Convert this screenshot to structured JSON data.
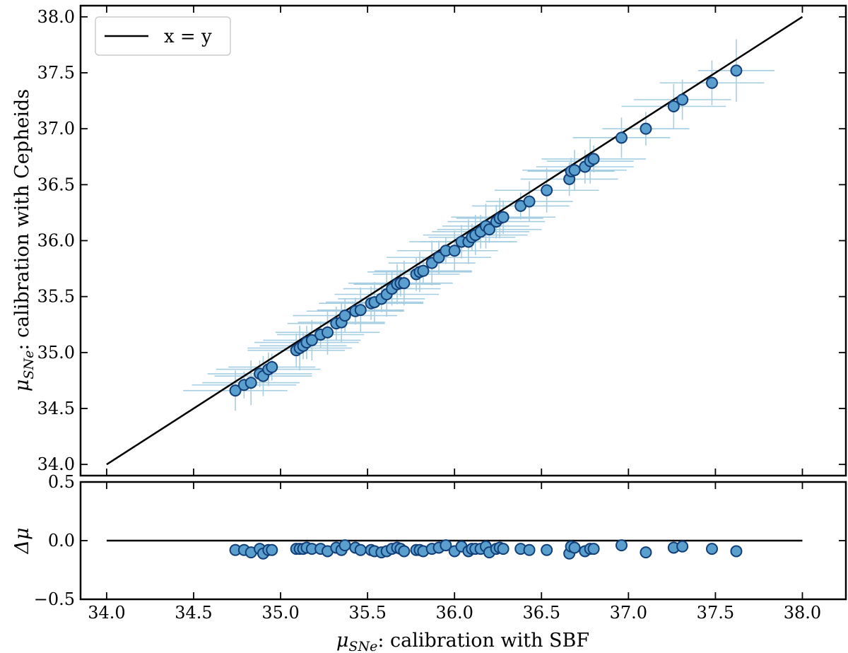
{
  "chart_data": {
    "type": "scatter",
    "top_panel": {
      "xlim": [
        33.85,
        38.25
      ],
      "ylim": [
        33.9,
        38.1
      ],
      "yticks": [
        34.0,
        34.5,
        35.0,
        35.5,
        36.0,
        36.5,
        37.0,
        37.5,
        38.0
      ],
      "ytick_labels": [
        "34.0",
        "34.5",
        "35.0",
        "35.5",
        "36.0",
        "36.5",
        "37.0",
        "37.5",
        "38.0"
      ],
      "ylabel_main": "μ",
      "ylabel_sub": "SNe",
      "ylabel_rest": ": calibration with Cepheids",
      "reference_line": {
        "label": "x = y",
        "from": [
          34.0,
          34.0
        ],
        "to": [
          38.0,
          38.0
        ]
      },
      "legend_position": "top-left",
      "series": [
        {
          "points": [
            [
              34.74,
              34.66,
              0.3,
              0.18
            ],
            [
              34.79,
              34.71,
              0.3,
              0.12
            ],
            [
              34.83,
              34.73,
              0.28,
              0.2
            ],
            [
              34.88,
              34.81,
              0.3,
              0.12
            ],
            [
              34.9,
              34.79,
              0.28,
              0.18
            ],
            [
              34.93,
              34.85,
              0.3,
              0.15
            ],
            [
              34.95,
              34.87,
              0.25,
              0.12
            ],
            [
              35.09,
              35.02,
              0.28,
              0.15
            ],
            [
              35.11,
              35.04,
              0.3,
              0.2
            ],
            [
              35.13,
              35.06,
              0.25,
              0.12
            ],
            [
              35.15,
              35.09,
              0.3,
              0.15
            ],
            [
              35.18,
              35.11,
              0.28,
              0.18
            ],
            [
              35.23,
              35.16,
              0.25,
              0.12
            ],
            [
              35.27,
              35.18,
              0.3,
              0.2
            ],
            [
              35.32,
              35.26,
              0.28,
              0.15
            ],
            [
              35.35,
              35.27,
              0.25,
              0.18
            ],
            [
              35.37,
              35.33,
              0.3,
              0.15
            ],
            [
              35.43,
              35.37,
              0.28,
              0.12
            ],
            [
              35.46,
              35.38,
              0.25,
              0.2
            ],
            [
              35.52,
              35.44,
              0.3,
              0.15
            ],
            [
              35.54,
              35.45,
              0.28,
              0.18
            ],
            [
              35.58,
              35.48,
              0.25,
              0.12
            ],
            [
              35.61,
              35.52,
              0.3,
              0.2
            ],
            [
              35.64,
              35.57,
              0.28,
              0.15
            ],
            [
              35.67,
              35.61,
              0.25,
              0.18
            ],
            [
              35.69,
              35.62,
              0.3,
              0.12
            ],
            [
              35.71,
              35.62,
              0.28,
              0.2
            ],
            [
              35.78,
              35.7,
              0.25,
              0.15
            ],
            [
              35.8,
              35.72,
              0.3,
              0.18
            ],
            [
              35.82,
              35.73,
              0.28,
              0.12
            ],
            [
              35.87,
              35.8,
              0.25,
              0.2
            ],
            [
              35.91,
              35.85,
              0.3,
              0.15
            ],
            [
              35.95,
              35.91,
              0.28,
              0.12
            ],
            [
              36.0,
              35.91,
              0.25,
              0.18
            ],
            [
              36.04,
              35.99,
              0.3,
              0.15
            ],
            [
              36.08,
              35.99,
              0.28,
              0.2
            ],
            [
              36.1,
              36.03,
              0.25,
              0.12
            ],
            [
              36.12,
              36.05,
              0.3,
              0.18
            ],
            [
              36.15,
              36.08,
              0.28,
              0.15
            ],
            [
              36.18,
              36.13,
              0.25,
              0.2
            ],
            [
              36.2,
              36.1,
              0.3,
              0.12
            ],
            [
              36.24,
              36.17,
              0.28,
              0.15
            ],
            [
              36.26,
              36.2,
              0.25,
              0.18
            ],
            [
              36.28,
              36.21,
              0.3,
              0.15
            ],
            [
              36.38,
              36.31,
              0.28,
              0.12
            ],
            [
              36.43,
              36.35,
              0.25,
              0.18
            ],
            [
              36.53,
              36.45,
              0.3,
              0.2
            ],
            [
              36.66,
              36.55,
              0.28,
              0.15
            ],
            [
              36.67,
              36.62,
              0.25,
              0.12
            ],
            [
              36.69,
              36.63,
              0.3,
              0.18
            ],
            [
              36.75,
              36.66,
              0.28,
              0.15
            ],
            [
              36.78,
              36.71,
              0.25,
              0.2
            ],
            [
              36.8,
              36.73,
              0.3,
              0.12
            ],
            [
              36.96,
              36.92,
              0.28,
              0.18
            ],
            [
              37.1,
              37.0,
              0.25,
              0.15
            ],
            [
              37.26,
              37.2,
              0.3,
              0.2
            ],
            [
              37.31,
              37.26,
              0.28,
              0.18
            ],
            [
              37.48,
              37.41,
              0.3,
              0.2
            ],
            [
              37.62,
              37.52,
              0.22,
              0.28
            ]
          ]
        }
      ]
    },
    "bottom_panel": {
      "xlim": [
        33.85,
        38.25
      ],
      "ylim": [
        -0.5,
        0.5
      ],
      "xticks": [
        34.0,
        34.5,
        35.0,
        35.5,
        36.0,
        36.5,
        37.0,
        37.5,
        38.0
      ],
      "xtick_labels": [
        "34.0",
        "34.5",
        "35.0",
        "35.5",
        "36.0",
        "36.5",
        "37.0",
        "37.5",
        "38.0"
      ],
      "yticks": [
        -0.5,
        0.0,
        0.5
      ],
      "ytick_labels": [
        "−0.5",
        "0.0",
        "0.5"
      ],
      "ylabel": "Δμ",
      "xlabel_main": "μ",
      "xlabel_sub": "SNe",
      "xlabel_rest": ": calibration with SBF",
      "reference_line": {
        "y": 0.0,
        "from_x": 34.0,
        "to_x": 38.0
      },
      "residuals": [
        [
          34.74,
          -0.08
        ],
        [
          34.79,
          -0.08
        ],
        [
          34.83,
          -0.1
        ],
        [
          34.88,
          -0.07
        ],
        [
          34.9,
          -0.11
        ],
        [
          34.93,
          -0.08
        ],
        [
          34.95,
          -0.08
        ],
        [
          35.09,
          -0.07
        ],
        [
          35.11,
          -0.07
        ],
        [
          35.13,
          -0.07
        ],
        [
          35.15,
          -0.06
        ],
        [
          35.18,
          -0.07
        ],
        [
          35.23,
          -0.07
        ],
        [
          35.27,
          -0.09
        ],
        [
          35.32,
          -0.06
        ],
        [
          35.35,
          -0.08
        ],
        [
          35.37,
          -0.04
        ],
        [
          35.43,
          -0.06
        ],
        [
          35.46,
          -0.08
        ],
        [
          35.52,
          -0.08
        ],
        [
          35.54,
          -0.09
        ],
        [
          35.58,
          -0.1
        ],
        [
          35.61,
          -0.09
        ],
        [
          35.64,
          -0.07
        ],
        [
          35.67,
          -0.06
        ],
        [
          35.69,
          -0.07
        ],
        [
          35.71,
          -0.09
        ],
        [
          35.78,
          -0.08
        ],
        [
          35.8,
          -0.08
        ],
        [
          35.82,
          -0.09
        ],
        [
          35.87,
          -0.07
        ],
        [
          35.91,
          -0.06
        ],
        [
          35.95,
          -0.04
        ],
        [
          36.0,
          -0.09
        ],
        [
          36.04,
          -0.05
        ],
        [
          36.08,
          -0.09
        ],
        [
          36.1,
          -0.07
        ],
        [
          36.12,
          -0.07
        ],
        [
          36.15,
          -0.07
        ],
        [
          36.18,
          -0.05
        ],
        [
          36.2,
          -0.1
        ],
        [
          36.24,
          -0.07
        ],
        [
          36.26,
          -0.06
        ],
        [
          36.28,
          -0.07
        ],
        [
          36.38,
          -0.07
        ],
        [
          36.43,
          -0.08
        ],
        [
          36.53,
          -0.08
        ],
        [
          36.66,
          -0.11
        ],
        [
          36.67,
          -0.05
        ],
        [
          36.69,
          -0.06
        ],
        [
          36.75,
          -0.09
        ],
        [
          36.78,
          -0.07
        ],
        [
          36.8,
          -0.07
        ],
        [
          36.96,
          -0.04
        ],
        [
          37.1,
          -0.1
        ],
        [
          37.26,
          -0.06
        ],
        [
          37.31,
          -0.05
        ],
        [
          37.48,
          -0.07
        ],
        [
          37.62,
          -0.09
        ]
      ]
    },
    "colors": {
      "points_fill": "#5b9fcf",
      "points_edge": "#123f78",
      "errorbars": "#a6cee3",
      "reference_line": "#000000"
    }
  }
}
